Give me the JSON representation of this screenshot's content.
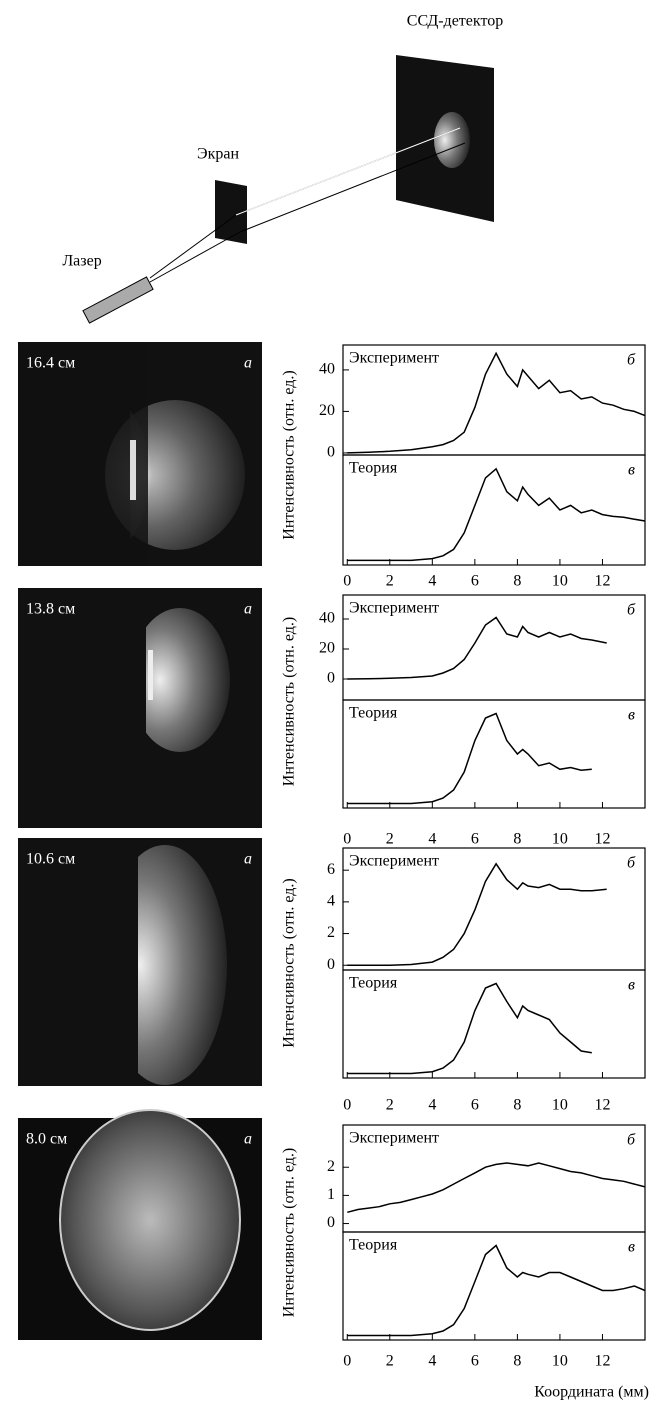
{
  "diagram": {
    "detector": "ССД-детектор",
    "screen": "Экран",
    "laser": "Лазер"
  },
  "images": [
    {
      "distance": "16.4 см",
      "label": "а"
    },
    {
      "distance": "13.8 см",
      "label": "а"
    },
    {
      "distance": "10.6 см",
      "label": "а"
    },
    {
      "distance": "8.0 см",
      "label": "а"
    }
  ],
  "chart_data": [
    {
      "type": "line",
      "label": "б",
      "ylabel": "Интенсивность (отн. ед.)",
      "x": [
        0,
        1,
        2,
        3,
        4,
        4.5,
        5,
        5.5,
        6,
        6.5,
        7,
        7.5,
        8,
        8.25,
        8.5,
        9,
        9.5,
        10,
        10.5,
        11,
        11.5,
        12,
        12.5,
        13,
        13.5,
        14
      ],
      "series": [
        {
          "name": "Эксперимент",
          "color": "#000000",
          "values": [
            0,
            0.3,
            0.8,
            1.5,
            3,
            4,
            6,
            10,
            22,
            38,
            48,
            38,
            32,
            40,
            37,
            31,
            35,
            29,
            30,
            26,
            27,
            24,
            23,
            21,
            20,
            18
          ]
        }
      ],
      "xlim": [
        -0.2,
        14
      ],
      "ylim": [
        -1,
        52
      ],
      "yticks": [
        0,
        20,
        40
      ]
    },
    {
      "type": "line",
      "label": "в",
      "x": [
        0,
        1,
        2,
        3,
        4,
        4.5,
        5,
        5.5,
        6,
        6.5,
        7,
        7.5,
        8,
        8.25,
        8.5,
        9,
        9.5,
        10,
        10.5,
        11,
        11.5,
        12,
        12.5,
        13,
        13.5,
        14
      ],
      "series": [
        {
          "name": "Теория",
          "color": "#000000",
          "values": [
            0,
            0,
            0,
            0,
            0.02,
            0.05,
            0.12,
            0.3,
            0.6,
            0.9,
            1.0,
            0.75,
            0.65,
            0.8,
            0.72,
            0.6,
            0.68,
            0.55,
            0.6,
            0.52,
            0.55,
            0.5,
            0.48,
            0.47,
            0.45,
            0.43
          ]
        }
      ],
      "xlim": [
        -0.2,
        14
      ],
      "ylim": [
        -0.05,
        1.15
      ],
      "xticks": [
        0,
        2,
        4,
        6,
        8,
        10,
        12
      ]
    },
    {
      "type": "line",
      "label": "б",
      "ylabel": "Интенсивность (отн. ед.)",
      "x": [
        0,
        1,
        2,
        3,
        4,
        4.5,
        5,
        5.5,
        6,
        6.5,
        7,
        7.5,
        8,
        8.25,
        8.5,
        9,
        9.5,
        10,
        10.5,
        11,
        11.5,
        12.2
      ],
      "series": [
        {
          "name": "Эксперимент",
          "color": "#000000",
          "values": [
            0,
            0.2,
            0.5,
            1,
            2,
            4,
            7,
            13,
            24,
            36,
            41,
            30,
            28,
            35,
            31,
            28,
            31,
            28,
            30,
            27,
            26,
            24
          ]
        }
      ],
      "xlim": [
        -0.2,
        14
      ],
      "ylim": [
        -14,
        56
      ],
      "yticks": [
        0,
        20,
        40
      ]
    },
    {
      "type": "line",
      "label": "в",
      "x": [
        0,
        1,
        2,
        3,
        4,
        4.5,
        5,
        5.5,
        6,
        6.5,
        7,
        7.5,
        8,
        8.25,
        8.5,
        9,
        9.5,
        10,
        10.5,
        11,
        11.5
      ],
      "series": [
        {
          "name": "Теория",
          "color": "#000000",
          "values": [
            0,
            0,
            0,
            0,
            0.02,
            0.06,
            0.15,
            0.35,
            0.7,
            0.95,
            1.0,
            0.7,
            0.55,
            0.6,
            0.55,
            0.42,
            0.45,
            0.38,
            0.4,
            0.37,
            0.38
          ]
        }
      ],
      "xlim": [
        -0.2,
        14
      ],
      "ylim": [
        -0.05,
        1.15
      ],
      "xticks": [
        0,
        2,
        4,
        6,
        8,
        10,
        12
      ]
    },
    {
      "type": "line",
      "label": "б",
      "ylabel": "Интенсивность (отн. ед.)",
      "x": [
        0,
        1,
        2,
        3,
        4,
        4.5,
        5,
        5.5,
        6,
        6.5,
        7,
        7.5,
        8,
        8.25,
        8.5,
        9,
        9.5,
        10,
        10.5,
        11,
        11.5,
        12.2
      ],
      "series": [
        {
          "name": "Эксперимент",
          "color": "#000000",
          "values": [
            0,
            0,
            0,
            0.05,
            0.2,
            0.5,
            1,
            2,
            3.5,
            5.3,
            6.4,
            5.4,
            4.8,
            5.2,
            5,
            4.9,
            5.1,
            4.8,
            4.8,
            4.7,
            4.7,
            4.8
          ]
        }
      ],
      "xlim": [
        -0.2,
        14
      ],
      "ylim": [
        -0.3,
        7.4
      ],
      "yticks": [
        0,
        2,
        4,
        6
      ]
    },
    {
      "type": "line",
      "label": "в",
      "x": [
        0,
        1,
        2,
        3,
        4,
        4.5,
        5,
        5.5,
        6,
        6.5,
        7,
        7.5,
        8,
        8.25,
        8.5,
        9,
        9.5,
        10,
        10.5,
        11,
        11.5
      ],
      "series": [
        {
          "name": "Теория",
          "color": "#000000",
          "values": [
            0,
            0,
            0,
            0,
            0.02,
            0.06,
            0.15,
            0.35,
            0.7,
            0.95,
            1.0,
            0.8,
            0.62,
            0.75,
            0.7,
            0.65,
            0.6,
            0.45,
            0.35,
            0.25,
            0.23
          ]
        }
      ],
      "xlim": [
        -0.2,
        14
      ],
      "ylim": [
        -0.05,
        1.15
      ],
      "xticks": [
        0,
        2,
        4,
        6,
        8,
        10,
        12
      ]
    },
    {
      "type": "line",
      "label": "б",
      "ylabel": "Интенсивность (отн. ед.)",
      "x": [
        0,
        0.5,
        1,
        1.5,
        2,
        2.5,
        3,
        3.5,
        4,
        4.5,
        5,
        5.5,
        6,
        6.5,
        7,
        7.5,
        8,
        8.5,
        9,
        9.5,
        10,
        10.5,
        11,
        11.5,
        12,
        12.5,
        13,
        13.5,
        14
      ],
      "series": [
        {
          "name": "Эксперимент",
          "color": "#000000",
          "values": [
            0.4,
            0.5,
            0.55,
            0.6,
            0.7,
            0.75,
            0.85,
            0.95,
            1.05,
            1.2,
            1.4,
            1.6,
            1.8,
            2.0,
            2.1,
            2.15,
            2.1,
            2.05,
            2.15,
            2.05,
            1.95,
            1.85,
            1.8,
            1.7,
            1.6,
            1.55,
            1.5,
            1.4,
            1.3
          ]
        }
      ],
      "xlim": [
        -0.2,
        14
      ],
      "ylim": [
        -0.3,
        3.5
      ],
      "yticks": [
        0,
        1,
        2
      ]
    },
    {
      "type": "line",
      "label": "в",
      "xlabel": "Координата (мм)",
      "x": [
        0,
        1,
        2,
        3,
        4,
        4.5,
        5,
        5.5,
        6,
        6.5,
        7,
        7.5,
        8,
        8.25,
        8.5,
        9,
        9.5,
        10,
        10.5,
        11,
        11.5,
        12,
        12.5,
        13,
        13.5,
        14
      ],
      "series": [
        {
          "name": "Теория",
          "color": "#000000",
          "values": [
            0,
            0,
            0,
            0,
            0.02,
            0.05,
            0.12,
            0.3,
            0.6,
            0.9,
            1.0,
            0.75,
            0.65,
            0.7,
            0.68,
            0.65,
            0.7,
            0.7,
            0.65,
            0.6,
            0.55,
            0.5,
            0.5,
            0.52,
            0.55,
            0.5
          ]
        }
      ],
      "xlim": [
        -0.2,
        14
      ],
      "ylim": [
        -0.05,
        1.15
      ],
      "xticks": [
        0,
        2,
        4,
        6,
        8,
        10,
        12
      ]
    }
  ]
}
